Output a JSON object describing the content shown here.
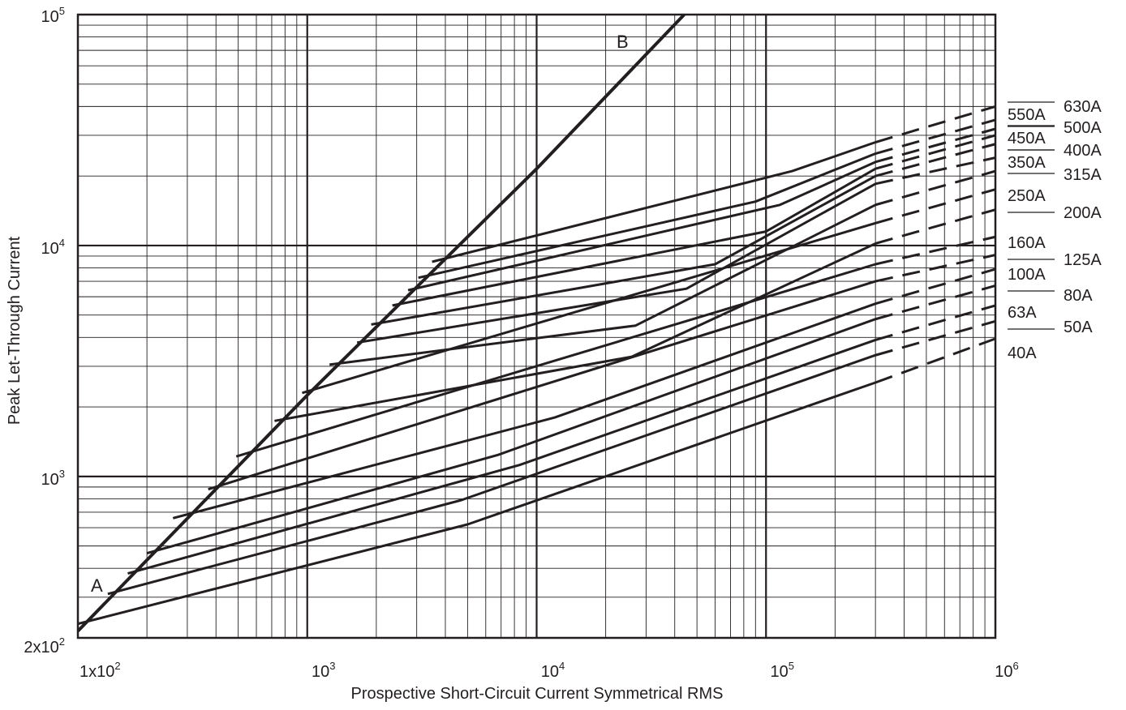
{
  "chart_data": {
    "type": "line",
    "title": "",
    "xlabel": "Prospective Short-Circuit Current Symmetrical RMS",
    "ylabel": "Peak Let-Through Current",
    "x_scale": "log",
    "y_scale": "log",
    "xlim": [
      100,
      1000000
    ],
    "ylim": [
      200,
      100000
    ],
    "grid": true,
    "x_tick_labels": [
      {
        "value": 100,
        "base": "1x10",
        "exp": "2"
      },
      {
        "value": 1000,
        "base": "10",
        "exp": "3"
      },
      {
        "value": 10000,
        "base": "10",
        "exp": "4"
      },
      {
        "value": 100000,
        "base": "10",
        "exp": "5"
      },
      {
        "value": 1000000,
        "base": "10",
        "exp": "6"
      }
    ],
    "y_tick_labels": [
      {
        "value": 200,
        "base": "2x10",
        "exp": "2"
      },
      {
        "value": 1000,
        "base": "10",
        "exp": "3"
      },
      {
        "value": 10000,
        "base": "10",
        "exp": "4"
      },
      {
        "value": 100000,
        "base": "10",
        "exp": "5"
      }
    ],
    "reference_line": {
      "label_start": "A",
      "label_end": "B",
      "points": [
        [
          100,
          214
        ],
        [
          1000,
          2250
        ],
        [
          10000,
          21500
        ],
        [
          44000,
          100000
        ]
      ]
    },
    "series": [
      {
        "name": "40A",
        "points": [
          [
            100,
            230
          ],
          [
            5000,
            620
          ],
          [
            300000,
            2550
          ]
        ],
        "dashed_to": [
          1000000,
          3950
        ]
      },
      {
        "name": "50A",
        "points": [
          [
            135,
            310
          ],
          [
            4700,
            790
          ],
          [
            300000,
            3350
          ]
        ],
        "dashed_to": [
          1000000,
          4700
        ]
      },
      {
        "name": "63A",
        "points": [
          [
            165,
            380
          ],
          [
            8400,
            1120
          ],
          [
            300000,
            3900
          ]
        ],
        "dashed_to": [
          1000000,
          5500
        ]
      },
      {
        "name": "80A",
        "points": [
          [
            200,
            465
          ],
          [
            6800,
            1240
          ],
          [
            300000,
            4800
          ]
        ],
        "dashed_to": [
          1000000,
          6700
        ]
      },
      {
        "name": "100A",
        "points": [
          [
            260,
            660
          ],
          [
            12000,
            1800
          ],
          [
            300000,
            5600
          ]
        ],
        "dashed_to": [
          1000000,
          7900
        ]
      },
      {
        "name": "125A",
        "points": [
          [
            370,
            880
          ],
          [
            300000,
            7000
          ]
        ],
        "dashed_to": [
          1000000,
          9100
        ]
      },
      {
        "name": "160A",
        "points": [
          [
            490,
            1220
          ],
          [
            300000,
            8300
          ]
        ],
        "dashed_to": [
          1000000,
          10900
        ]
      },
      {
        "name": "200A",
        "points": [
          [
            720,
            1740
          ],
          [
            26000,
            3300
          ],
          [
            300000,
            10200
          ]
        ],
        "dashed_to": [
          1000000,
          14300
        ]
      },
      {
        "name": "250A",
        "points": [
          [
            950,
            2300
          ],
          [
            300000,
            12500
          ]
        ],
        "dashed_to": [
          1000000,
          17500
        ]
      },
      {
        "name": "315A",
        "points": [
          [
            1250,
            3050
          ],
          [
            27000,
            4500
          ],
          [
            300000,
            15000
          ]
        ],
        "dashed_to": [
          1000000,
          21000
        ]
      },
      {
        "name": "350A",
        "points": [
          [
            1650,
            3800
          ],
          [
            45000,
            6500
          ],
          [
            300000,
            18500
          ]
        ],
        "dashed_to": [
          1000000,
          24000
        ]
      },
      {
        "name": "400A",
        "points": [
          [
            1900,
            4550
          ],
          [
            60000,
            8300
          ],
          [
            300000,
            20000
          ]
        ],
        "dashed_to": [
          1000000,
          27500
        ]
      },
      {
        "name": "450A",
        "points": [
          [
            2350,
            5500
          ],
          [
            100000,
            11500
          ],
          [
            300000,
            21500
          ]
        ],
        "dashed_to": [
          1000000,
          30000
        ]
      },
      {
        "name": "500A",
        "points": [
          [
            2750,
            6400
          ],
          [
            115000,
            15000
          ],
          [
            300000,
            23000
          ]
        ],
        "dashed_to": [
          1000000,
          32000
        ]
      },
      {
        "name": "550A",
        "points": [
          [
            3050,
            7250
          ],
          [
            90000,
            15500
          ],
          [
            300000,
            25000
          ]
        ],
        "dashed_to": [
          1000000,
          35000
        ]
      },
      {
        "name": "630A",
        "points": [
          [
            3500,
            8500
          ],
          [
            130000,
            21000
          ],
          [
            300000,
            28000
          ]
        ],
        "dashed_to": [
          1000000,
          40000
        ]
      }
    ],
    "right_labels": {
      "left_column": [
        "550A",
        "450A",
        "350A",
        "250A",
        "160A",
        "100A",
        "63A",
        "40A"
      ],
      "right_column": [
        "630A",
        "500A",
        "400A",
        "315A",
        "200A",
        "125A",
        "80A",
        "50A"
      ]
    }
  }
}
